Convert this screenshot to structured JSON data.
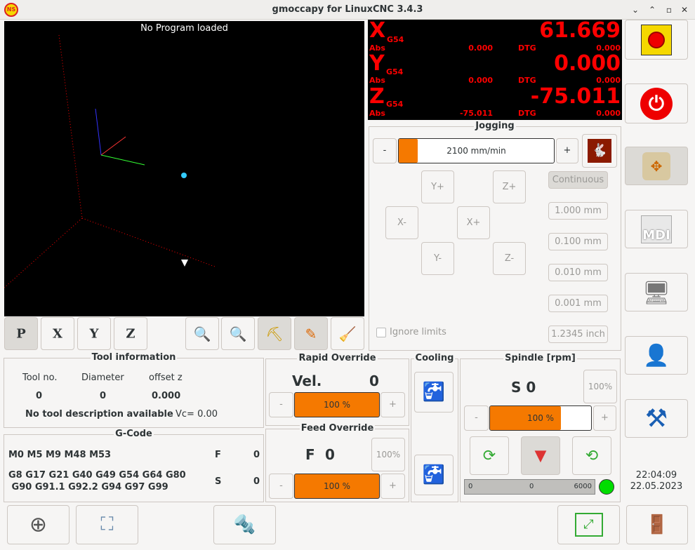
{
  "window": {
    "title": "gmoccapy for LinuxCNC  3.4.3",
    "app_icon": "ns-logo",
    "controls": [
      "minimize",
      "maximize",
      "restore",
      "close"
    ]
  },
  "graphics": {
    "status": "No Program loaded",
    "view_buttons": [
      "P",
      "X",
      "Y",
      "Z"
    ],
    "tools": [
      "zoom-in",
      "zoom-out",
      "tool-path-view",
      "pencil",
      "clear-plot"
    ]
  },
  "dro": {
    "color": "#ff0000",
    "axes": [
      {
        "name": "X",
        "system": "G54",
        "value": "61.669",
        "abs_label": "Abs",
        "abs": "0.000",
        "dtg_label": "DTG",
        "dtg": "0.000"
      },
      {
        "name": "Y",
        "system": "G54",
        "value": "0.000",
        "abs_label": "Abs",
        "abs": "0.000",
        "dtg_label": "DTG",
        "dtg": "0.000"
      },
      {
        "name": "Z",
        "system": "G54",
        "value": "-75.011",
        "abs_label": "Abs",
        "abs": "-75.011",
        "dtg_label": "DTG",
        "dtg": "0.000"
      }
    ]
  },
  "jogging": {
    "title": "Jogging",
    "minus": "-",
    "plus": "+",
    "speed": "2100 mm/min",
    "speed_fraction": 0.12,
    "buttons": {
      "yp": "Y+",
      "zp": "Z+",
      "xm": "X-",
      "xp": "X+",
      "ym": "Y-",
      "zm": "Z-"
    },
    "increments": [
      "Continuous",
      "1.000 mm",
      "0.100 mm",
      "0.010 mm",
      "0.001 mm",
      "1.2345 inch"
    ],
    "ignore_limits": "Ignore limits"
  },
  "tool": {
    "title": "Tool information",
    "headers": [
      "Tool no.",
      "Diameter",
      "offset z"
    ],
    "values": [
      "0",
      "0",
      "0.000"
    ],
    "description": "No tool description available",
    "vc": "Vc= 0.00"
  },
  "gcode": {
    "title": "G-Code",
    "mcodes": "M0 M5 M9 M48 M53",
    "gcodes_1": "G8 G17 G21 G40 G49 G54 G64 G80",
    "gcodes_2": " G90 G91.1 G92.2 G94 G97 G99",
    "f_label": "F",
    "f_value": "0",
    "s_label": "S",
    "s_value": "0"
  },
  "rapid": {
    "title": "Rapid Override",
    "label": "Vel.",
    "value": "0",
    "minus": "-",
    "plus": "+",
    "percent": "100 %"
  },
  "feed": {
    "title": "Feed Override",
    "label": "F",
    "value": "0",
    "reset": "100%",
    "minus": "-",
    "plus": "+",
    "percent": "100 %"
  },
  "cooling": {
    "title": "Cooling"
  },
  "spindle": {
    "title": "Spindle [rpm]",
    "speed": "S 0",
    "reset": "100%",
    "minus": "-",
    "plus": "+",
    "percent": "100 %",
    "override_fraction": 0.7,
    "bar_min": "0",
    "bar_value": "0",
    "bar_max": "6000",
    "led_color": "#00dd00"
  },
  "clock": {
    "time": "22:04:09",
    "date": "22.05.2023"
  },
  "side_buttons": [
    "emergency-stop",
    "machine-power",
    "manual-mode",
    "mdi-mode",
    "auto-mode",
    "settings",
    "tools-setup"
  ],
  "mdi_label": "MDI"
}
